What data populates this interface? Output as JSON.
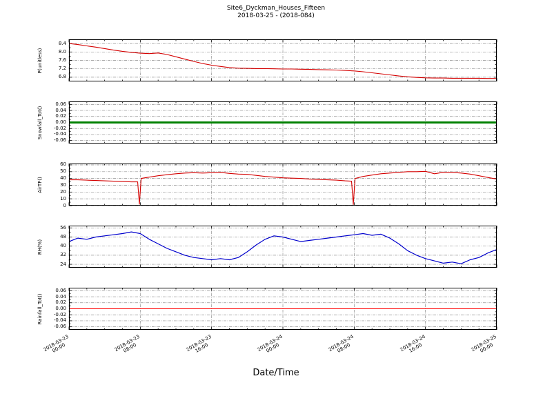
{
  "chart_data": {
    "type": "line",
    "title": "Site6_Dyckman_Houses_Fifteen",
    "subtitle": "2018-03-25 - (2018-084)",
    "xlabel": "Date/Time",
    "x_unit": "hours since 2018-03-23 00:00",
    "xlim": [
      0,
      48
    ],
    "grid": true,
    "grid_style": "dash-dot",
    "x_tick_hours": [
      0,
      8,
      16,
      24,
      32,
      40,
      48
    ],
    "x_tick_labels": [
      "2018-03-23 00:00",
      "2018-03-23 08:00",
      "2018-03-23 16:00",
      "2018-03-24 00:00",
      "2018-03-24 08:00",
      "2018-03-24 16:00",
      "2018-03-25 00:00"
    ],
    "subplots": [
      {
        "ylabel": "P(unitless)",
        "color": "#d40000",
        "linewidth": 1.1,
        "ylim": [
          6.6,
          8.6
        ],
        "yticks": [
          6.8,
          7.2,
          7.6,
          8.0,
          8.4
        ],
        "ytick_labels": [
          "6.8",
          "7.2",
          "7.6",
          "8.0",
          "8.4"
        ],
        "x": [
          0,
          1,
          2,
          3,
          4,
          5,
          6,
          7,
          8,
          9,
          10,
          11,
          12,
          13,
          14,
          15,
          16,
          17,
          18,
          19,
          20,
          21,
          22,
          23,
          24,
          25,
          26,
          27,
          28,
          29,
          30,
          31,
          32,
          33,
          34,
          35,
          36,
          37,
          38,
          39,
          40,
          41,
          42,
          43,
          44,
          45,
          46,
          47,
          48
        ],
        "values": [
          8.4,
          8.35,
          8.29,
          8.23,
          8.16,
          8.09,
          8.03,
          7.98,
          7.94,
          7.92,
          7.95,
          7.88,
          7.77,
          7.66,
          7.55,
          7.45,
          7.37,
          7.31,
          7.26,
          7.23,
          7.22,
          7.21,
          7.21,
          7.2,
          7.19,
          7.19,
          7.18,
          7.17,
          7.16,
          7.15,
          7.14,
          7.12,
          7.1,
          7.06,
          7.01,
          6.96,
          6.91,
          6.86,
          6.82,
          6.79,
          6.77,
          6.76,
          6.76,
          6.75,
          6.75,
          6.75,
          6.75,
          6.74,
          6.74
        ]
      },
      {
        "ylabel": "Snowfall_Tot()",
        "color": "#008000",
        "linewidth": 3,
        "ylim": [
          -0.07,
          0.07
        ],
        "yticks": [
          -0.06,
          -0.04,
          -0.02,
          0,
          0.02,
          0.04,
          0.06
        ],
        "ytick_labels": [
          "-0.06",
          "-0.04",
          "-0.02",
          "0.00",
          "0.02",
          "0.04",
          "0.06"
        ],
        "x": [
          0,
          48
        ],
        "values": [
          0,
          0
        ]
      },
      {
        "ylabel": "AirTF()",
        "color": "#d40000",
        "linewidth": 1.1,
        "ylim": [
          0,
          62
        ],
        "yticks": [
          0,
          10,
          20,
          30,
          40,
          50,
          60
        ],
        "ytick_labels": [
          "0",
          "10",
          "20",
          "30",
          "40",
          "50",
          "60"
        ],
        "x": [
          0,
          1,
          2,
          3,
          4,
          5,
          6,
          7,
          7.7,
          7.9,
          8.1,
          9,
          10,
          11,
          12,
          13,
          14,
          15,
          16,
          17,
          18,
          19,
          20,
          21,
          22,
          23,
          24,
          25,
          26,
          27,
          28,
          29,
          30,
          31,
          31.7,
          31.9,
          32.1,
          33,
          34,
          35,
          36,
          37,
          38,
          39,
          40,
          41,
          42,
          43,
          44,
          45,
          46,
          47,
          48
        ],
        "values": [
          38,
          38,
          37.5,
          37,
          36.5,
          36,
          35.5,
          35,
          35,
          2,
          40,
          42,
          44,
          45.5,
          47,
          48,
          48.5,
          48,
          48.5,
          49,
          47.5,
          46.5,
          46,
          44.5,
          43,
          42,
          41,
          40.5,
          40,
          39,
          38.5,
          38,
          37.5,
          36.5,
          36,
          1.5,
          40,
          43,
          45,
          47,
          48,
          49,
          50,
          50,
          50.5,
          47,
          49,
          49,
          48,
          46.5,
          44,
          41.5,
          39
        ]
      },
      {
        "ylabel": "RH(%)",
        "color": "#0000cd",
        "linewidth": 1.2,
        "ylim": [
          21,
          58
        ],
        "yticks": [
          24,
          32,
          40,
          48,
          56
        ],
        "ytick_labels": [
          "24",
          "32",
          "40",
          "48",
          "56"
        ],
        "x": [
          0,
          1,
          2,
          3,
          4,
          5,
          6,
          7,
          8,
          9,
          10,
          11,
          12,
          13,
          14,
          15,
          16,
          17,
          18,
          19,
          20,
          21,
          22,
          23,
          24,
          25,
          26,
          27,
          28,
          29,
          30,
          31,
          32,
          33,
          34,
          35,
          36,
          37,
          38,
          39,
          40,
          41,
          42,
          43,
          44,
          45,
          46,
          47,
          48
        ],
        "values": [
          44,
          47,
          46,
          48,
          49,
          50,
          51,
          52.5,
          51,
          46,
          42,
          38,
          35,
          32,
          30,
          29,
          28,
          29,
          28,
          30,
          35,
          41,
          46,
          49,
          48,
          46,
          44,
          45,
          46,
          47,
          48,
          49,
          50,
          51,
          49.5,
          50.5,
          47,
          42,
          36,
          32,
          29,
          27,
          25,
          26,
          24.5,
          28,
          30,
          34,
          37
        ]
      },
      {
        "ylabel": "Rainfall_Tot()",
        "color": "#ff0000",
        "linewidth": 1,
        "ylim": [
          -0.07,
          0.07
        ],
        "yticks": [
          -0.06,
          -0.04,
          -0.02,
          0,
          0.02,
          0.04,
          0.06
        ],
        "ytick_labels": [
          "-0.06",
          "-0.04",
          "-0.02",
          "0.00",
          "0.02",
          "0.04",
          "0.06"
        ],
        "x": [
          0,
          48
        ],
        "values": [
          0,
          0
        ]
      }
    ]
  }
}
